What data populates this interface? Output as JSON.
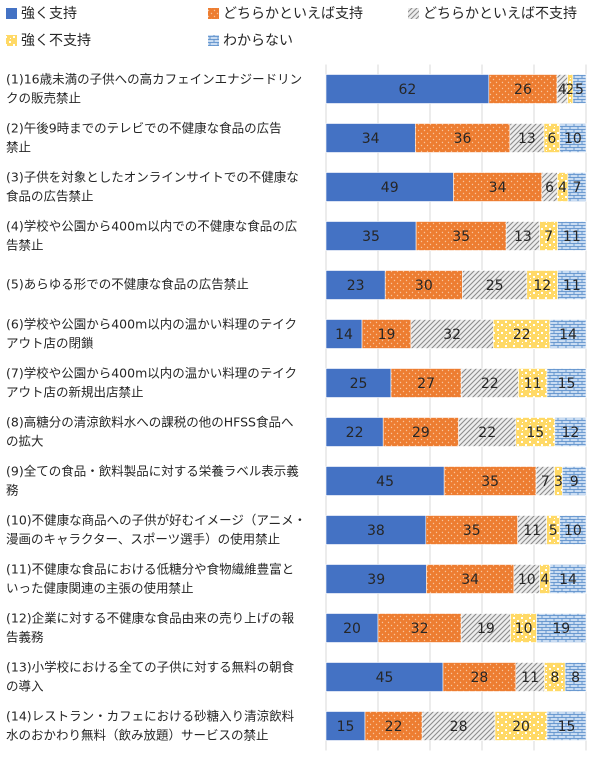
{
  "chart_data": {
    "type": "bar",
    "orientation": "horizontal",
    "stacked": true,
    "percent_scale": true,
    "xlim": [
      0,
      100
    ],
    "grid": true,
    "legend_position": "top",
    "categories": [
      [
        "(1)16歳未満の子供への高カフェインエナジードリン",
        "クの販売禁止"
      ],
      [
        "(2)午後9時までのテレビでの不健康な食品の広告",
        "禁止"
      ],
      [
        "(3)子供を対象としたオンラインサイトでの不健康な",
        "食品の広告禁止"
      ],
      [
        "(4)学校や公園から400m以内での不健康な食品の広",
        "告禁止"
      ],
      [
        "(5)あらゆる形での不健康な食品の広告禁止"
      ],
      [
        "(6)学校や公園から400m以内の温かい料理のテイク",
        "アウト店の閉鎖"
      ],
      [
        "(7)学校や公園から400m以内の温かい料理のテイク",
        "アウト店の新規出店禁止"
      ],
      [
        "(8)高糖分の清涼飲料水への課税の他のHFSS食品へ",
        "の拡大"
      ],
      [
        "(9)全ての食品・飲料製品に対する栄養ラベル表示義",
        "務"
      ],
      [
        "(10)不健康な商品への子供が好むイメージ（アニメ・",
        "漫画のキャラクター、スポーツ選手）の使用禁止"
      ],
      [
        "(11)不健康な食品における低糖分や食物繊維豊富と",
        "いった健康関連の主張の使用禁止"
      ],
      [
        "(12)企業に対する不健康な食品由来の売り上げの報",
        "告義務"
      ],
      [
        "(13)小学校における全ての子供に対する無料の朝食",
        "の導入"
      ],
      [
        "(14)レストラン・カフェにおける砂糖入り清涼飲料",
        "水のおかわり無料（飲み放題）サービスの禁止"
      ]
    ],
    "series": [
      {
        "name": "強く支持",
        "color": "#4472c4",
        "pattern": "solid",
        "values": [
          62,
          34,
          49,
          35,
          23,
          14,
          25,
          22,
          45,
          38,
          39,
          20,
          45,
          15
        ]
      },
      {
        "name": "どちらかといえば支持",
        "color": "#ed7d31",
        "pattern": "dots",
        "values": [
          26,
          36,
          34,
          35,
          30,
          19,
          27,
          29,
          35,
          35,
          34,
          32,
          28,
          22
        ]
      },
      {
        "name": "どちらかといえば不支持",
        "color": "#a5a5a5",
        "pattern": "diagonal",
        "values": [
          4,
          13,
          6,
          13,
          25,
          32,
          22,
          22,
          7,
          11,
          10,
          19,
          11,
          28
        ]
      },
      {
        "name": "強く不支持",
        "color": "#ffc000",
        "pattern": "confetti",
        "values": [
          2,
          6,
          4,
          7,
          12,
          22,
          11,
          15,
          3,
          5,
          4,
          10,
          8,
          20
        ]
      },
      {
        "name": "わからない",
        "color": "#9dc3e6",
        "pattern": "bricks",
        "values": [
          5,
          10,
          7,
          11,
          11,
          14,
          15,
          12,
          9,
          10,
          14,
          19,
          8,
          15
        ]
      }
    ]
  }
}
